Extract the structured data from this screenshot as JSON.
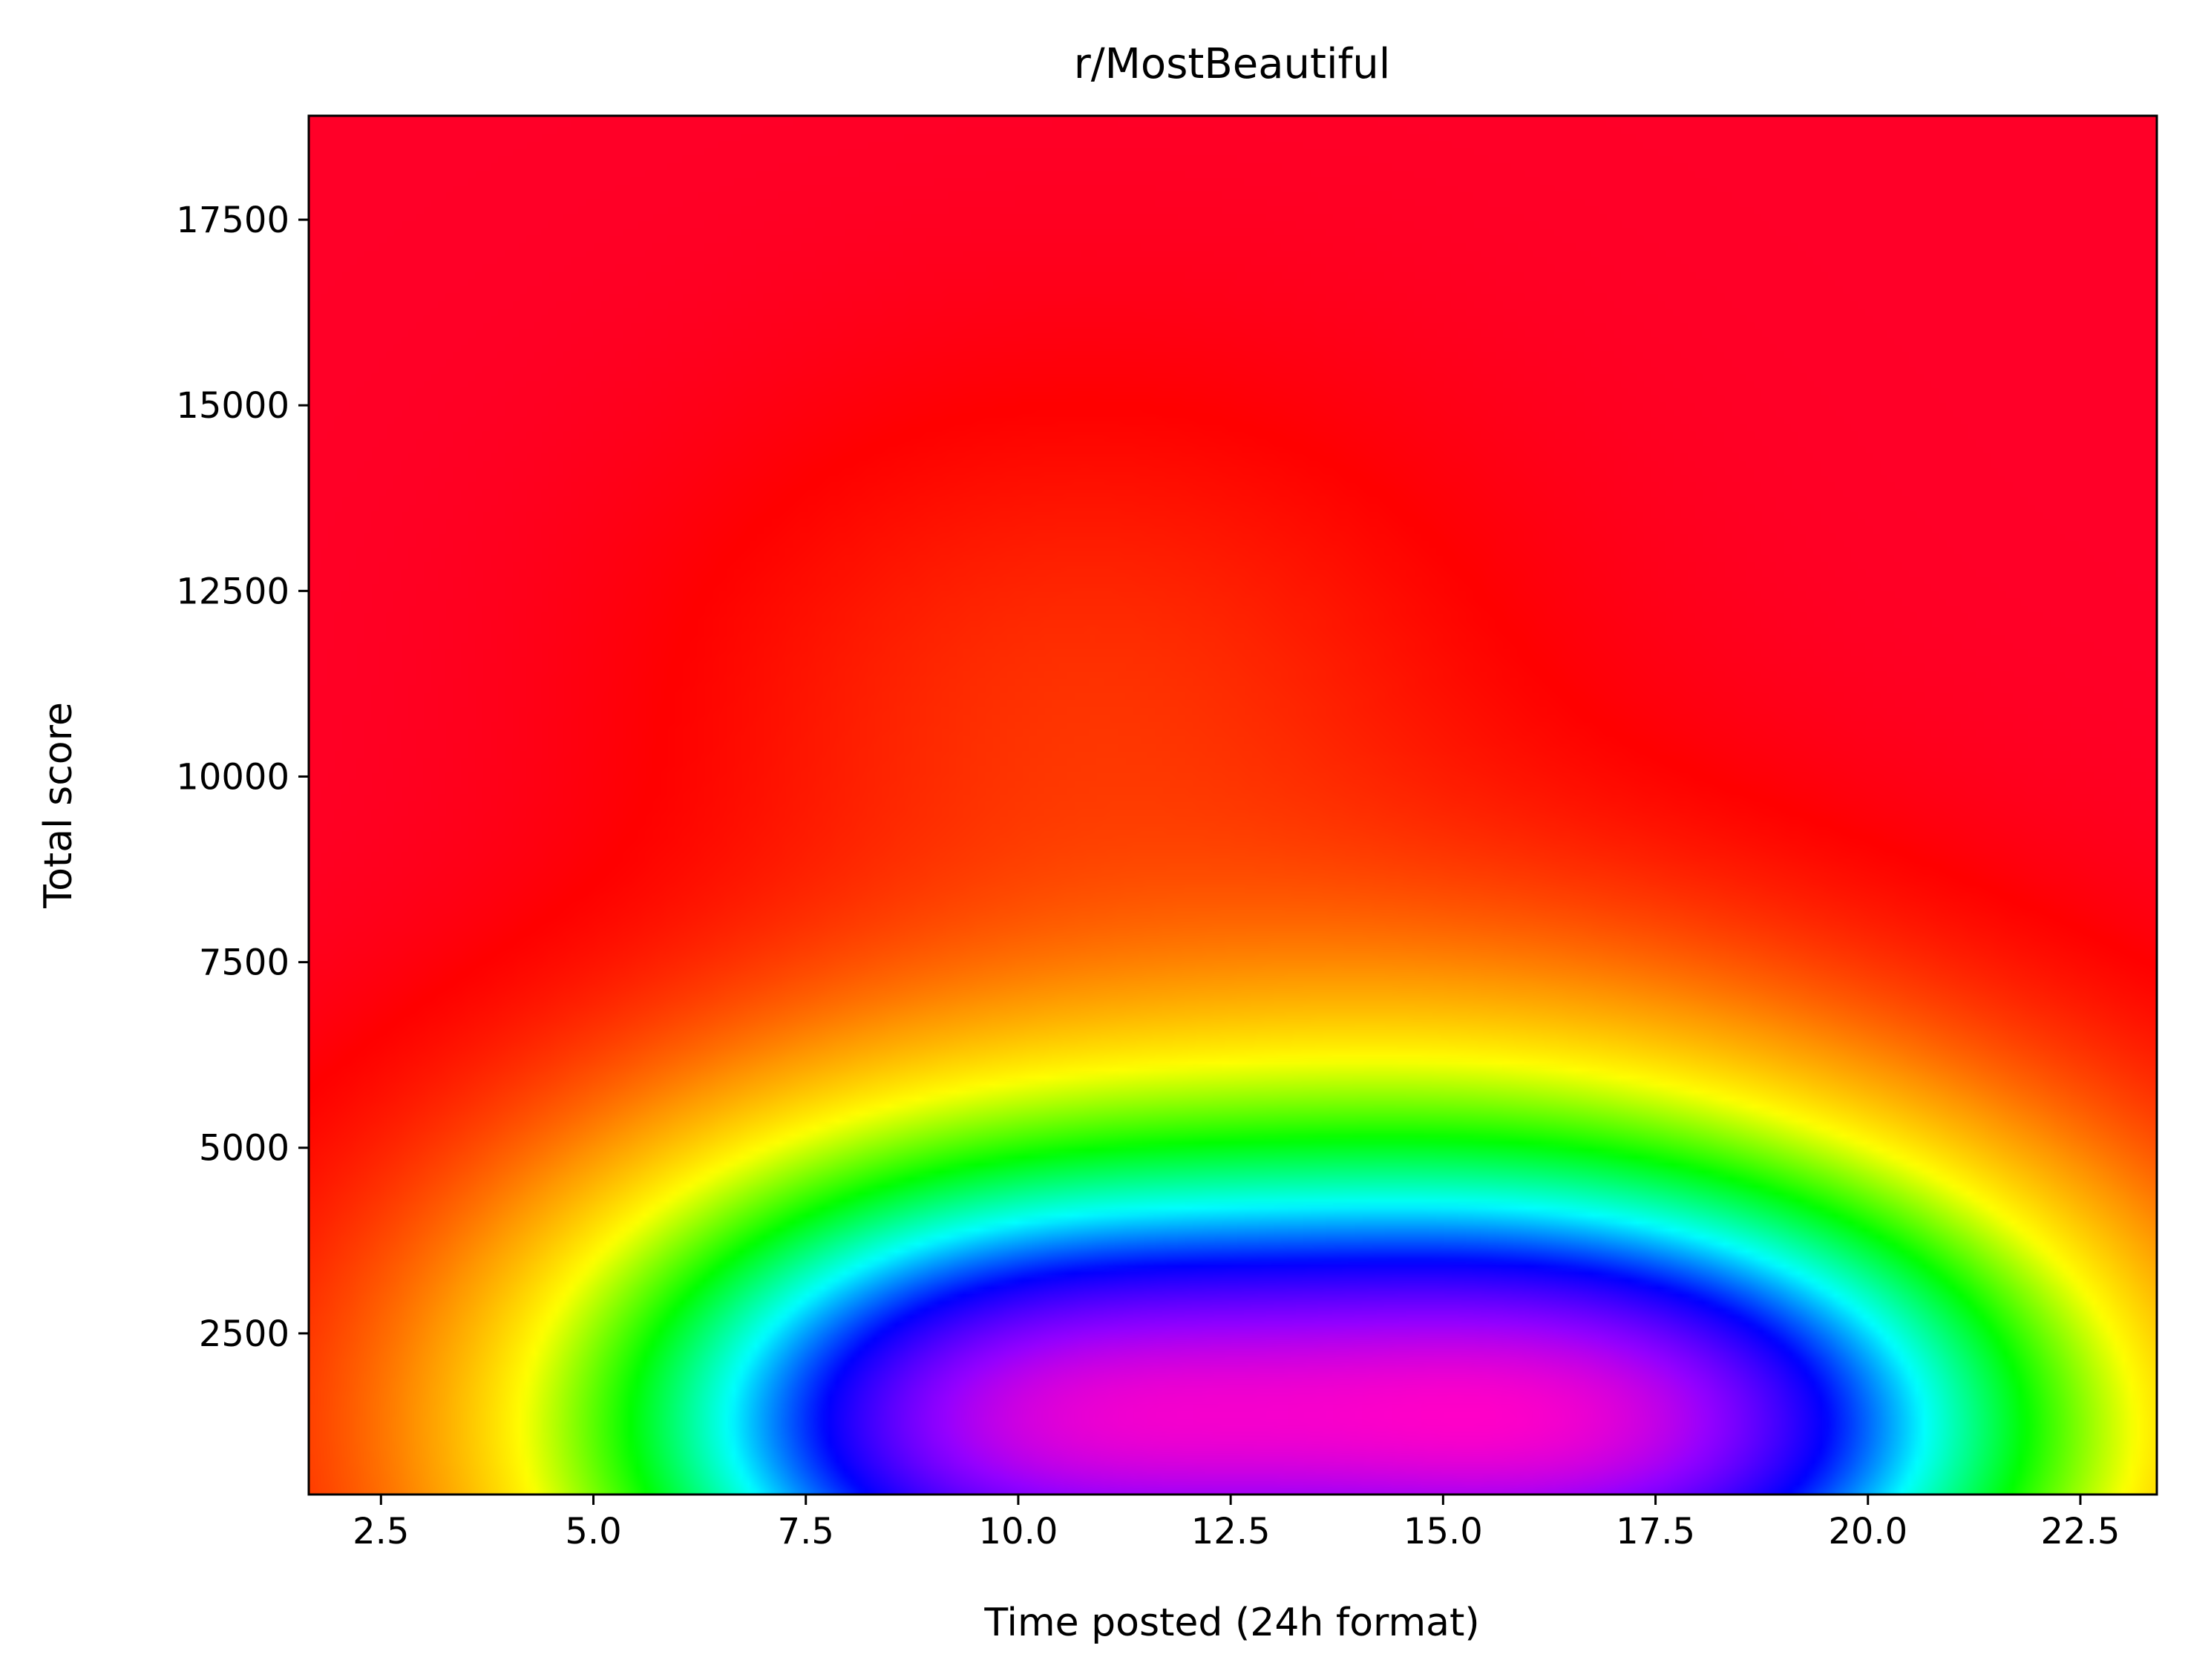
{
  "chart_data": {
    "type": "heatmap",
    "title": "r/MostBeautiful",
    "xlabel": "Time posted (24h format)",
    "ylabel": "Total score",
    "xlim": [
      1.65,
      23.4
    ],
    "ylim": [
      330,
      18900
    ],
    "x_ticks": [
      2.5,
      5.0,
      7.5,
      10.0,
      12.5,
      15.0,
      17.5,
      20.0,
      22.5
    ],
    "x_tick_labels": [
      "2.5",
      "5.0",
      "7.5",
      "10.0",
      "12.5",
      "15.0",
      "17.5",
      "20.0",
      "22.5"
    ],
    "y_ticks": [
      2500,
      5000,
      7500,
      10000,
      12500,
      15000,
      17500
    ],
    "y_tick_labels": [
      "2500",
      "5000",
      "7500",
      "10000",
      "12500",
      "15000",
      "17500"
    ],
    "colormap": "gist_rainbow_r",
    "density_peaks": [
      {
        "x": 7.7,
        "y": 1200,
        "weight": 0.8
      },
      {
        "x": 11.0,
        "y": 1000,
        "weight": 0.85
      },
      {
        "x": 15.7,
        "y": 1100,
        "weight": 1.0
      },
      {
        "x": 19.5,
        "y": 1200,
        "weight": 0.9
      },
      {
        "x": 10.5,
        "y": 3500,
        "weight": 0.25
      },
      {
        "x": 15.5,
        "y": 4500,
        "weight": 0.25
      },
      {
        "x": 10.8,
        "y": 11000,
        "weight": 0.1
      }
    ],
    "grid": false,
    "legend": "none"
  }
}
